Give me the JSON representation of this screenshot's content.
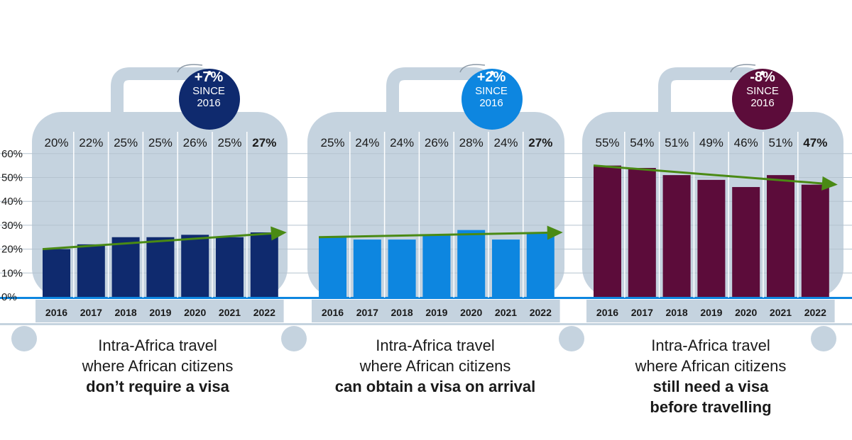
{
  "colors": {
    "suitcase": "#c5d3df",
    "axis_text": "#1a1a1a",
    "trend_arrow": "#4a8a14",
    "series": [
      "#0f2a6e",
      "#0d86e0",
      "#5c0c3a"
    ]
  },
  "y_axis": {
    "ticks": [
      "0%",
      "10%",
      "20%",
      "30%",
      "40%",
      "50%",
      "60%"
    ],
    "range": [
      0,
      60
    ]
  },
  "chart_data": [
    {
      "type": "bar",
      "categories": [
        "2016",
        "2017",
        "2018",
        "2019",
        "2020",
        "2021",
        "2022"
      ],
      "values": [
        20,
        22,
        25,
        25,
        26,
        25,
        27
      ],
      "labels": [
        "20%",
        "22%",
        "25%",
        "25%",
        "26%",
        "25%",
        "27%"
      ],
      "ylim": [
        0,
        60
      ],
      "trend": [
        20,
        27
      ],
      "badge": {
        "big": "+7%",
        "line1": "SINCE",
        "line2": "2016"
      },
      "caption": {
        "line1": "Intra-Africa travel",
        "line2": "where African citizens",
        "emphasis": "don’t require a visa"
      }
    },
    {
      "type": "bar",
      "categories": [
        "2016",
        "2017",
        "2018",
        "2019",
        "2020",
        "2021",
        "2022"
      ],
      "values": [
        25,
        24,
        24,
        26,
        28,
        24,
        27
      ],
      "labels": [
        "25%",
        "24%",
        "24%",
        "26%",
        "28%",
        "24%",
        "27%"
      ],
      "ylim": [
        0,
        60
      ],
      "trend": [
        25,
        27
      ],
      "badge": {
        "big": "+2%",
        "line1": "SINCE",
        "line2": "2016"
      },
      "caption": {
        "line1": "Intra-Africa travel",
        "line2": "where African citizens",
        "emphasis": "can obtain a visa on arrival"
      }
    },
    {
      "type": "bar",
      "categories": [
        "2016",
        "2017",
        "2018",
        "2019",
        "2020",
        "2021",
        "2022"
      ],
      "values": [
        55,
        54,
        51,
        49,
        46,
        51,
        47
      ],
      "labels": [
        "55%",
        "54%",
        "51%",
        "49%",
        "46%",
        "51%",
        "47%"
      ],
      "ylim": [
        0,
        60
      ],
      "trend": [
        55,
        47
      ],
      "badge": {
        "big": "-8%",
        "line1": "SINCE",
        "line2": "2016"
      },
      "caption": {
        "line1": "Intra-Africa travel",
        "line2": "where African citizens",
        "emphasis": "still need a visa before travelling"
      }
    }
  ]
}
